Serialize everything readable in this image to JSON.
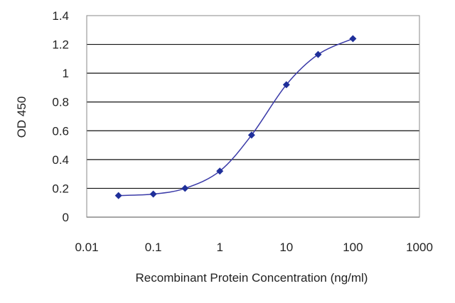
{
  "chart_data": {
    "type": "line",
    "title": "",
    "xlabel": "Recombinant Protein Concentration (ng/ml)",
    "ylabel": "OD 450",
    "x_scale": "log",
    "xlim": [
      0.01,
      1000
    ],
    "ylim": [
      0,
      1.4
    ],
    "x_ticks": [
      "0.01",
      "0.1",
      "1",
      "10",
      "100",
      "1000"
    ],
    "y_ticks": [
      "0",
      "0.2",
      "0.4",
      "0.6",
      "0.8",
      "1",
      "1.2",
      "1.4"
    ],
    "grid": "horizontal",
    "legend": "none",
    "series": [
      {
        "x": [
          0.03,
          0.1,
          0.3,
          1,
          3,
          10,
          30,
          100
        ],
        "y": [
          0.15,
          0.16,
          0.2,
          0.32,
          0.57,
          0.92,
          1.13,
          1.24
        ]
      }
    ],
    "colors": {
      "line": "#3a3aa8",
      "marker": "#1f2f9a",
      "grid": "#111111",
      "plot_border": "#888888"
    }
  }
}
